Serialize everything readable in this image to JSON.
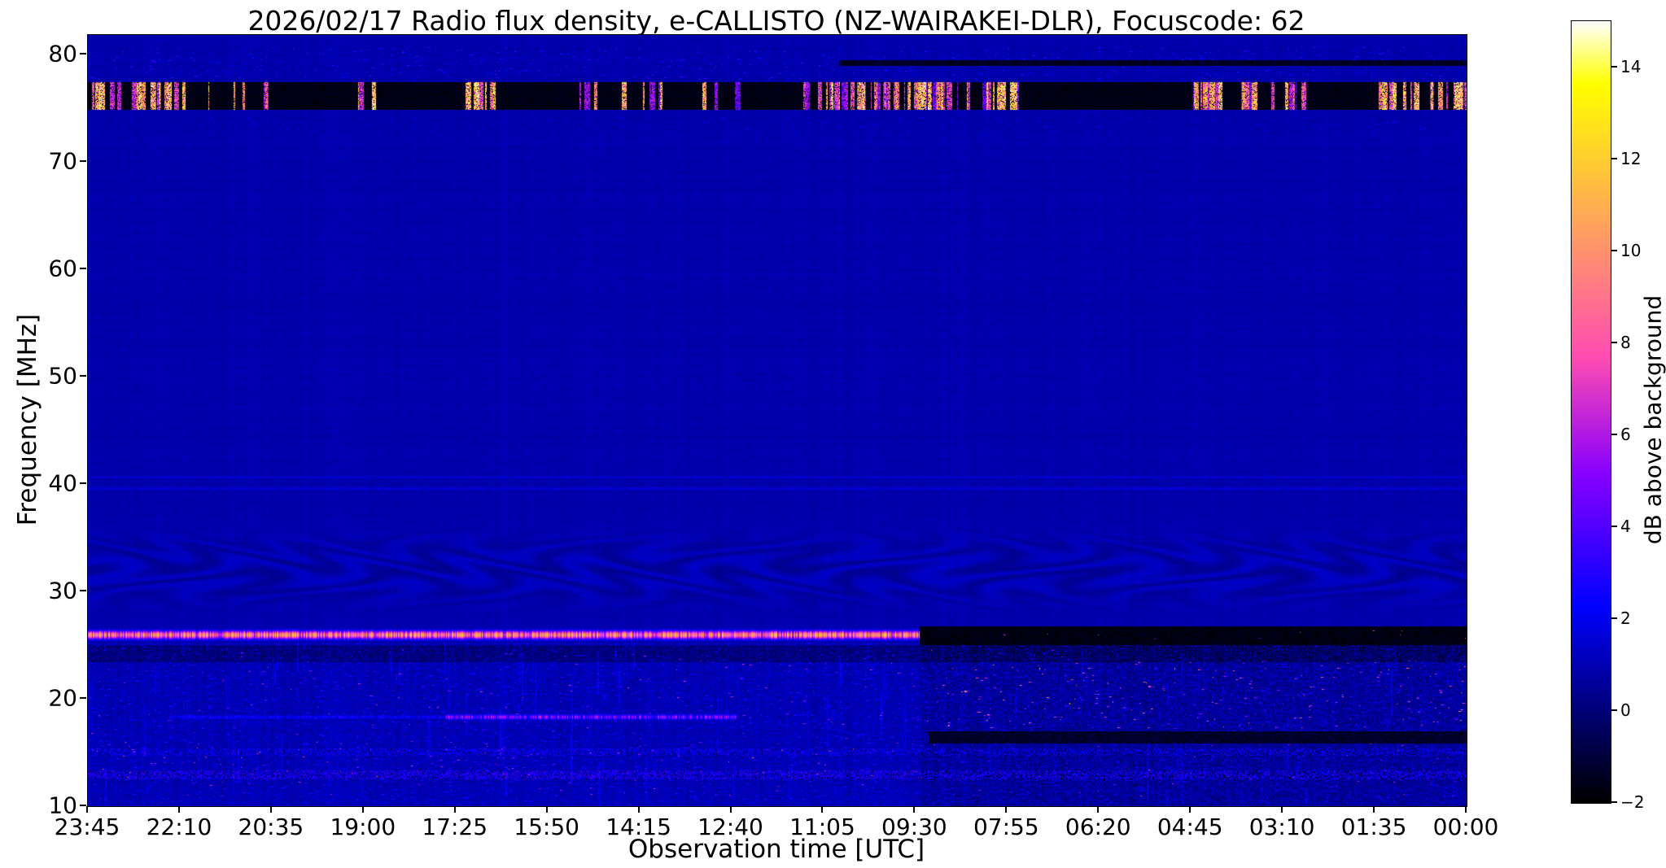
{
  "figure": {
    "background_color": "#ffffff",
    "text_color": "#000000"
  },
  "chart_data": {
    "type": "heatmap",
    "subtype": "radio-spectrogram",
    "title": "2026/02/17  Radio flux density, e-CALLISTO (NZ-WAIRAKEI-DLR), Focuscode: 62",
    "xlabel": "Observation time [UTC]",
    "ylabel": "Frequency [MHz]",
    "x_ticks": [
      "23:45",
      "22:10",
      "20:35",
      "19:00",
      "17:25",
      "15:50",
      "14:15",
      "12:40",
      "11:05",
      "09:30",
      "07:55",
      "06:20",
      "04:45",
      "03:10",
      "01:35",
      "00:00"
    ],
    "x_axis_reversed": true,
    "y_ticks": [
      10,
      20,
      30,
      40,
      50,
      60,
      70,
      80
    ],
    "y_range": [
      10,
      81.8
    ],
    "grid": false,
    "colormap": "gnuplot2",
    "background_level_db": 0.88,
    "colorbar": {
      "label": "dB above background",
      "ticks": [
        -2,
        0,
        2,
        4,
        6,
        8,
        10,
        12,
        14
      ],
      "range": [
        -2,
        15
      ],
      "position": "right"
    },
    "features": [
      {
        "type": "waves",
        "id": "interference-waves-32MHz",
        "f_min": 28,
        "f_max": 36,
        "amp_db": 0.45
      },
      {
        "type": "vstreaks",
        "id": "vertical-streaks-low-band",
        "f_min": 10,
        "f_max": 25.2,
        "count": 170,
        "db_min": 0.4,
        "db_max": 1.5
      },
      {
        "type": "band",
        "id": "noisy-row-13MHz",
        "f_min": 12.6,
        "f_max": 13.3,
        "t_min": 0,
        "t_max": 1,
        "db": 0.55,
        "jitter": 2.3,
        "mode": "add"
      },
      {
        "type": "band",
        "id": "noisy-row-15MHz",
        "f_min": 14.8,
        "f_max": 15.4,
        "t_min": 0,
        "t_max": 1,
        "db": 0.4,
        "jitter": 1.6,
        "mode": "add"
      },
      {
        "type": "speckle_band",
        "id": "noise-dots-low-dim",
        "f_min": 10.2,
        "f_max": 25.2,
        "t_min": 0,
        "t_max": 1,
        "db_min": 1.5,
        "db_max": 4,
        "count": 5200,
        "dot_w": 5,
        "dot_h": 1.4
      },
      {
        "type": "speckle_band",
        "id": "noise-dots-low-bright",
        "f_min": 11,
        "f_max": 24.6,
        "t_min": 0,
        "t_max": 1,
        "db_min": 4,
        "db_max": 8,
        "count": 420,
        "dot_w": 4,
        "dot_h": 1.4
      },
      {
        "type": "band",
        "id": "dark-band-24MHz",
        "f_min": 23.5,
        "f_max": 25.0,
        "t_min": 0,
        "t_max": 1,
        "db": -0.9,
        "jitter": 0.8,
        "mode": "add"
      },
      {
        "type": "band",
        "id": "right-side-dim-low",
        "f_min": 10,
        "f_max": 25.2,
        "t_min": 0.605,
        "t_max": 1,
        "db": -0.4,
        "jitter": 0.9,
        "mode": "add"
      },
      {
        "type": "band",
        "id": "dark-band-16MHz-early-hours",
        "f_min": 15.9,
        "f_max": 17.0,
        "t_min": 0.61,
        "t_max": 1,
        "db": -1.3,
        "jitter": 0.7,
        "mode": "set"
      },
      {
        "type": "band",
        "id": "dark-band-26MHz-early-hours",
        "f_min": 25.1,
        "f_max": 26.75,
        "t_min": 0.603,
        "t_max": 1,
        "db": -1.7,
        "jitter": 0.5,
        "mode": "set"
      },
      {
        "type": "speckle_band",
        "id": "dots-26MHz-early-hours",
        "f_min": 25.3,
        "f_max": 26.4,
        "t_min": 0.62,
        "t_max": 1,
        "db_min": 4,
        "db_max": 9,
        "count": 10,
        "dot_w": 3,
        "dot_h": 1.2
      },
      {
        "type": "speckle_band",
        "id": "bright-dots-18-23MHz-early-hours",
        "f_min": 17.3,
        "f_max": 23.5,
        "t_min": 0.62,
        "t_max": 1,
        "db_min": 6,
        "db_max": 11,
        "count": 150,
        "dot_w": 4,
        "dot_h": 1.6
      },
      {
        "type": "speckle_band",
        "id": "bright-dots-12-16MHz-left",
        "f_min": 12,
        "f_max": 16,
        "t_min": 0,
        "t_max": 0.6,
        "db_min": 5,
        "db_max": 9,
        "count": 60,
        "dot_w": 3,
        "dot_h": 1.3
      },
      {
        "type": "line",
        "id": "faint-row-39MHz",
        "freq": 39.6,
        "t_min": 0,
        "t_max": 1,
        "db": 1.6,
        "db_jitter": 0.4,
        "width_mhz": 0.18,
        "mode": "max"
      },
      {
        "type": "line",
        "id": "faint-row-40MHz",
        "freq": 40.7,
        "t_min": 0,
        "t_max": 1,
        "db": 1.5,
        "db_jitter": 0.4,
        "width_mhz": 0.15,
        "mode": "max"
      },
      {
        "type": "line",
        "id": "pink-line-18MHz-midday",
        "freq": 18.3,
        "t_min": 0.26,
        "t_max": 0.47,
        "db": 4.5,
        "db_jitter": 2.5,
        "width_mhz": 0.25,
        "mode": "max"
      },
      {
        "type": "line",
        "id": "faint-line-18MHz",
        "freq": 18.35,
        "t_min": 0.06,
        "t_max": 0.26,
        "db": 2.2,
        "db_jitter": 1.0,
        "width_mhz": 0.2,
        "mode": "max"
      },
      {
        "type": "line",
        "id": "bright-line-26MHz-until-0930",
        "freq": 26.0,
        "t_min": 0,
        "t_max": 0.603,
        "db": 9.0,
        "db_jitter": 3.5,
        "width_mhz": 0.38,
        "mode": "max"
      },
      {
        "type": "burst_band",
        "id": "rfi-burst-band-76MHz",
        "f_min": 74.9,
        "f_max": 77.4,
        "floor_db": -2,
        "burst_db_min": 5,
        "burst_db_max": 15,
        "clusters": 30
      },
      {
        "type": "speckle_band",
        "id": "speckle-78-80MHz",
        "f_min": 77.7,
        "f_max": 80.7,
        "t_min": 0,
        "t_max": 1,
        "db_min": 1,
        "db_max": 4.5,
        "count": 900,
        "dot_w": 4,
        "dot_h": 1.4
      },
      {
        "type": "speckle_band",
        "id": "speckle-73MHz",
        "f_min": 72.7,
        "f_max": 74.2,
        "t_min": 0,
        "t_max": 1,
        "db_min": 0.8,
        "db_max": 3,
        "count": 350,
        "dot_w": 4,
        "dot_h": 1.2
      },
      {
        "type": "line",
        "id": "dark-line-79MHz-early-hours",
        "freq": 79.25,
        "t_min": 0.545,
        "t_max": 1,
        "db": -1.4,
        "db_jitter": 0.3,
        "width_mhz": 0.22,
        "mode": "set"
      }
    ]
  }
}
